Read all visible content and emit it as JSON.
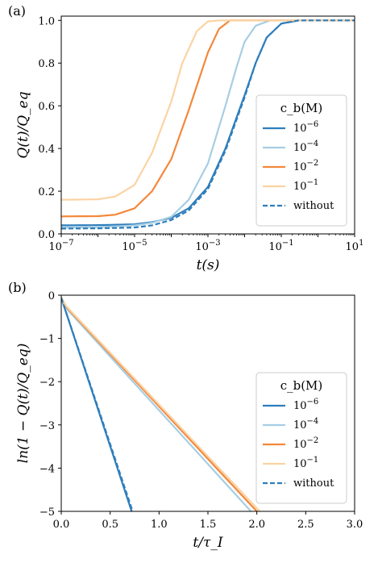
{
  "chart_data": [
    {
      "type": "line",
      "panel_label": "(a)",
      "xlabel": "t(s)",
      "ylabel": "Q(t)/Q_eq",
      "xscale": "log",
      "xlim": [
        1e-07,
        10
      ],
      "ylim": [
        0,
        1.02
      ],
      "x_ticks": [
        {
          "value": 1e-07,
          "base": "10",
          "exp": "−7"
        },
        {
          "value": 1e-05,
          "base": "10",
          "exp": "−5"
        },
        {
          "value": 0.001,
          "base": "10",
          "exp": "−3"
        },
        {
          "value": 0.1,
          "base": "10",
          "exp": "−1"
        },
        {
          "value": 10,
          "base": "10",
          "exp": "1"
        }
      ],
      "y_ticks": [
        {
          "value": 0,
          "label": "0.0"
        },
        {
          "value": 0.2,
          "label": "0.2"
        },
        {
          "value": 0.4,
          "label": "0.4"
        },
        {
          "value": 0.6,
          "label": "0.6"
        },
        {
          "value": 0.8,
          "label": "0.8"
        },
        {
          "value": 1.0,
          "label": "1.0"
        }
      ],
      "legend": {
        "title": "c_b(M)",
        "position": "lower right"
      },
      "series": [
        {
          "name": "10^-6",
          "color": "#2e7ebc",
          "dash": false,
          "points": [
            [
              1e-07,
              0.04
            ],
            [
              1e-06,
              0.041
            ],
            [
              1e-05,
              0.045
            ],
            [
              3e-05,
              0.055
            ],
            [
              0.0001,
              0.075
            ],
            [
              0.0003,
              0.12
            ],
            [
              0.001,
              0.22
            ],
            [
              0.003,
              0.4
            ],
            [
              0.01,
              0.65
            ],
            [
              0.02,
              0.8
            ],
            [
              0.04,
              0.92
            ],
            [
              0.1,
              0.985
            ],
            [
              0.3,
              1.0
            ],
            [
              10,
              1.0
            ]
          ]
        },
        {
          "name": "10^-4",
          "color": "#a6cee3",
          "dash": false,
          "points": [
            [
              1e-07,
              0.03
            ],
            [
              1e-06,
              0.031
            ],
            [
              1e-05,
              0.04
            ],
            [
              3e-05,
              0.052
            ],
            [
              0.0001,
              0.08
            ],
            [
              0.0003,
              0.16
            ],
            [
              0.001,
              0.33
            ],
            [
              0.003,
              0.6
            ],
            [
              0.006,
              0.78
            ],
            [
              0.01,
              0.9
            ],
            [
              0.02,
              0.975
            ],
            [
              0.05,
              1.0
            ],
            [
              10,
              1.0
            ]
          ]
        },
        {
          "name": "10^-2",
          "color": "#f4883a",
          "dash": false,
          "points": [
            [
              1e-07,
              0.082
            ],
            [
              1e-06,
              0.083
            ],
            [
              3e-06,
              0.09
            ],
            [
              1e-05,
              0.12
            ],
            [
              3e-05,
              0.2
            ],
            [
              0.0001,
              0.35
            ],
            [
              0.0003,
              0.58
            ],
            [
              0.001,
              0.85
            ],
            [
              0.002,
              0.96
            ],
            [
              0.004,
              1.0
            ],
            [
              10,
              1.0
            ]
          ]
        },
        {
          "name": "10^-1",
          "color": "#fbd3a4",
          "dash": false,
          "points": [
            [
              1e-07,
              0.16
            ],
            [
              1e-06,
              0.162
            ],
            [
              3e-06,
              0.175
            ],
            [
              1e-05,
              0.23
            ],
            [
              3e-05,
              0.38
            ],
            [
              0.0001,
              0.62
            ],
            [
              0.0002,
              0.8
            ],
            [
              0.0005,
              0.95
            ],
            [
              0.001,
              0.995
            ],
            [
              0.002,
              1.0
            ],
            [
              10,
              1.0
            ]
          ]
        },
        {
          "name": "without",
          "color": "#2e7ebc",
          "dash": true,
          "points": [
            [
              1e-07,
              0.025
            ],
            [
              1e-06,
              0.026
            ],
            [
              1e-05,
              0.03
            ],
            [
              3e-05,
              0.04
            ],
            [
              0.0001,
              0.065
            ],
            [
              0.0003,
              0.11
            ],
            [
              0.001,
              0.21
            ],
            [
              0.003,
              0.39
            ],
            [
              0.01,
              0.64
            ],
            [
              0.02,
              0.8
            ],
            [
              0.04,
              0.92
            ],
            [
              0.1,
              0.985
            ],
            [
              0.3,
              1.0
            ],
            [
              10,
              1.0
            ]
          ]
        }
      ]
    },
    {
      "type": "line",
      "panel_label": "(b)",
      "xlabel": "t/τ_I",
      "ylabel": "ln(1 − Q(t)/Q_eq)",
      "xscale": "linear",
      "xlim": [
        0,
        3.0
      ],
      "ylim": [
        -5,
        0
      ],
      "x_ticks": [
        {
          "value": 0,
          "label": "0.0"
        },
        {
          "value": 0.5,
          "label": "0.5"
        },
        {
          "value": 1.0,
          "label": "1.0"
        },
        {
          "value": 1.5,
          "label": "1.5"
        },
        {
          "value": 2.0,
          "label": "2.0"
        },
        {
          "value": 2.5,
          "label": "2.5"
        },
        {
          "value": 3.0,
          "label": "3.0"
        }
      ],
      "y_ticks": [
        {
          "value": 0,
          "label": "0"
        },
        {
          "value": -1,
          "label": "−1"
        },
        {
          "value": -2,
          "label": "−2"
        },
        {
          "value": -3,
          "label": "−3"
        },
        {
          "value": -4,
          "label": "−4"
        },
        {
          "value": -5,
          "label": "−5"
        }
      ],
      "legend": {
        "title": "c_b(M)",
        "position": "lower right"
      },
      "series": [
        {
          "name": "10^-6",
          "color": "#2e7ebc",
          "dash": false,
          "points": [
            [
              0,
              -0.06
            ],
            [
              0.72,
              -5.0
            ]
          ]
        },
        {
          "name": "10^-4",
          "color": "#a6cee3",
          "dash": false,
          "points": [
            [
              0,
              -0.06
            ],
            [
              0.05,
              -0.3
            ],
            [
              1.94,
              -5.0
            ]
          ]
        },
        {
          "name": "10^-2",
          "color": "#f4883a",
          "dash": false,
          "points": [
            [
              0,
              -0.05
            ],
            [
              0.05,
              -0.27
            ],
            [
              2.0,
              -5.0
            ]
          ]
        },
        {
          "name": "10^-1",
          "color": "#fbd3a4",
          "dash": false,
          "points": [
            [
              0,
              -0.05
            ],
            [
              0.05,
              -0.25
            ],
            [
              2.03,
              -5.0
            ]
          ]
        },
        {
          "name": "without",
          "color": "#2e7ebc",
          "dash": true,
          "points": [
            [
              0,
              -0.06
            ],
            [
              0.73,
              -5.0
            ]
          ]
        }
      ]
    }
  ]
}
